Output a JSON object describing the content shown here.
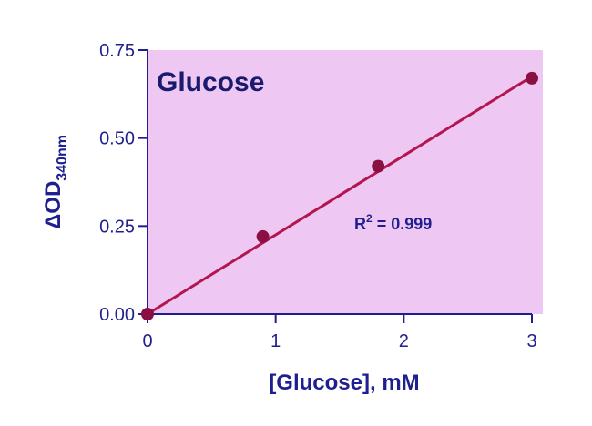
{
  "colors": {
    "plot_background": "#eec8f2",
    "axis": "#1f1f8f",
    "series": "#b3164f",
    "marker": "#8a1043",
    "text": "#1f1f8f"
  },
  "chart_data": {
    "type": "scatter",
    "title": "Glucose",
    "xlabel": "[Glucose], mM",
    "ylabel_main": "ΔOD",
    "ylabel_sub": "340nm",
    "xlim": [
      0,
      3
    ],
    "ylim": [
      0,
      0.75
    ],
    "x_ticks": [
      "0",
      "1",
      "2",
      "3"
    ],
    "y_ticks": [
      "0.00",
      "0.25",
      "0.50",
      "0.75"
    ],
    "series": [
      {
        "x": [
          0,
          0.9,
          1.8,
          3.0
        ],
        "y": [
          0.0,
          0.22,
          0.42,
          0.67
        ]
      }
    ],
    "fit_line": {
      "x": [
        0,
        3.0
      ],
      "y": [
        0.0,
        0.675
      ]
    },
    "annotation": {
      "base": "R",
      "sup": "2",
      "rest": " = 0.999"
    },
    "grid": false,
    "legend": "none"
  }
}
